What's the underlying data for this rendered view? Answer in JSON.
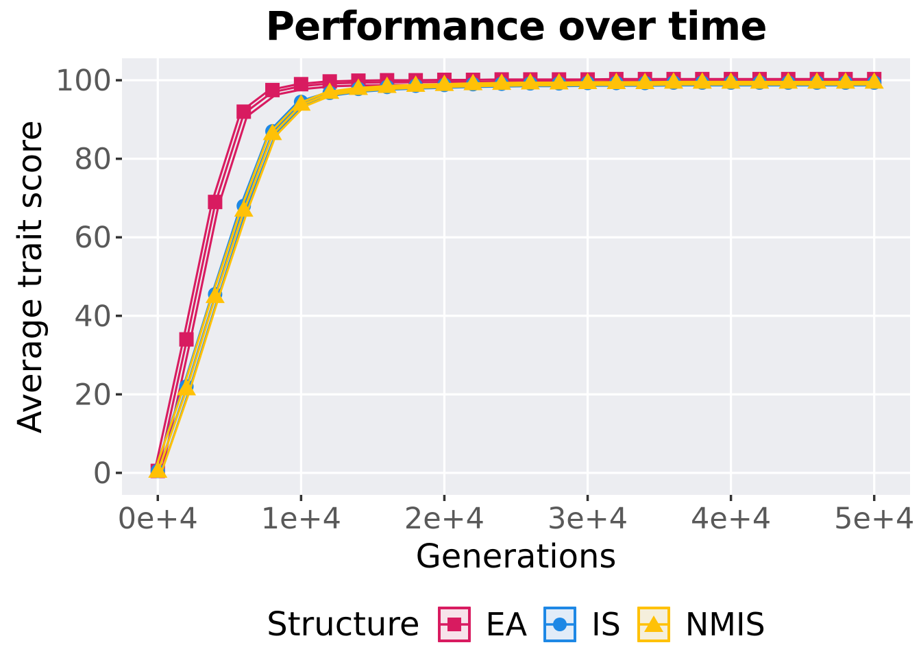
{
  "chart_data": {
    "type": "line",
    "title": "Performance over time",
    "xlabel": "Generations",
    "ylabel": "Average trait score",
    "legend_title": "Structure",
    "legend_position": "bottom",
    "grid": "major gridlines only, white on gray panel",
    "panel_background": "#ECEDF1",
    "grid_color": "#FFFFFF",
    "tick_label_color": "#595959",
    "tick_mark_color": "#333333",
    "x_tick_labels": [
      "0e+4",
      "1e+4",
      "2e+4",
      "3e+4",
      "4e+4",
      "5e+4"
    ],
    "x_tick_values": [
      0,
      10000,
      20000,
      30000,
      40000,
      50000
    ],
    "y_tick_labels": [
      "0",
      "20",
      "40",
      "60",
      "80",
      "100"
    ],
    "y_tick_values": [
      0,
      20,
      40,
      60,
      80,
      100
    ],
    "xlim": [
      -2500,
      52500
    ],
    "ylim": [
      -5.6,
      105.6
    ],
    "x": [
      0,
      2000,
      4000,
      6000,
      8000,
      10000,
      12000,
      14000,
      16000,
      18000,
      20000,
      22000,
      24000,
      26000,
      28000,
      30000,
      32000,
      34000,
      36000,
      38000,
      40000,
      42000,
      44000,
      46000,
      48000,
      50000
    ],
    "series": [
      {
        "name": "EA",
        "color": "#D81B60",
        "marker": "square",
        "key_fill": "#F7E3EA",
        "values": [
          0.5,
          34,
          69,
          92,
          97.5,
          99,
          99.7,
          99.9,
          100,
          100,
          100.1,
          100.1,
          100.2,
          100.2,
          100.2,
          100.2,
          100.3,
          100.3,
          100.3,
          100.3,
          100.3,
          100.3,
          100.3,
          100.3,
          100.3,
          100.3
        ]
      },
      {
        "name": "IS",
        "color": "#1E88E5",
        "marker": "circle",
        "key_fill": "#E2ECF8",
        "values": [
          0.5,
          22,
          45.5,
          68,
          87,
          94.5,
          96.8,
          97.8,
          98.3,
          98.6,
          98.8,
          99,
          99.1,
          99.2,
          99.2,
          99.3,
          99.3,
          99.3,
          99.4,
          99.4,
          99.4,
          99.4,
          99.4,
          99.4,
          99.4,
          99.4
        ]
      },
      {
        "name": "NMIS",
        "color": "#FFC107",
        "marker": "triangle",
        "key_fill": "#F5EFDC",
        "values": [
          0.5,
          21.5,
          45,
          67,
          86.5,
          94,
          97,
          98,
          98.5,
          98.8,
          99,
          99.2,
          99.3,
          99.4,
          99.4,
          99.5,
          99.5,
          99.5,
          99.6,
          99.6,
          99.6,
          99.6,
          99.6,
          99.6,
          99.6,
          99.6
        ]
      }
    ],
    "replicate_strands_per_series": 3
  }
}
